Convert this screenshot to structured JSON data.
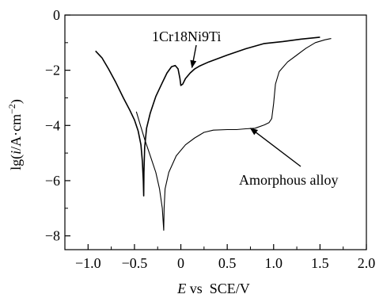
{
  "chart_data": {
    "type": "line",
    "xlim": [
      -1.25,
      2.0
    ],
    "ylim": [
      -8.5,
      0
    ],
    "x_ticks": [
      -1.0,
      -0.5,
      0,
      0.5,
      1.0,
      1.5,
      2.0
    ],
    "x_tick_labels": [
      "−1.0",
      "−0.5",
      "0",
      "0.5",
      "1.0",
      "1.5",
      "2.0"
    ],
    "y_ticks": [
      0,
      -2,
      -4,
      -6,
      -8
    ],
    "y_tick_labels": [
      "0",
      "−2",
      "−4",
      "−6",
      "−8"
    ],
    "xlabel": {
      "italic": "E",
      "rest": " vs  SCE/V"
    },
    "ylabel": {
      "pre": "lg(",
      "italic": "i",
      "post": "/A·cm",
      "sup": "−2",
      "end": ")"
    },
    "grid": false,
    "legend": "none",
    "series": [
      {
        "name": "1Cr18Ni9Ti",
        "color": "#000000",
        "points": [
          [
            -0.92,
            -1.3
          ],
          [
            -0.85,
            -1.55
          ],
          [
            -0.78,
            -1.95
          ],
          [
            -0.7,
            -2.45
          ],
          [
            -0.62,
            -3.0
          ],
          [
            -0.55,
            -3.45
          ],
          [
            -0.5,
            -3.8
          ],
          [
            -0.46,
            -4.2
          ],
          [
            -0.43,
            -4.7
          ],
          [
            -0.415,
            -5.3
          ],
          [
            -0.405,
            -6.0
          ],
          [
            -0.4,
            -6.55
          ],
          [
            -0.398,
            -5.7
          ],
          [
            -0.39,
            -4.8
          ],
          [
            -0.37,
            -4.1
          ],
          [
            -0.33,
            -3.55
          ],
          [
            -0.27,
            -2.95
          ],
          [
            -0.2,
            -2.45
          ],
          [
            -0.15,
            -2.1
          ],
          [
            -0.1,
            -1.87
          ],
          [
            -0.06,
            -1.83
          ],
          [
            -0.03,
            -1.95
          ],
          [
            -0.01,
            -2.3
          ],
          [
            0.0,
            -2.55
          ],
          [
            0.02,
            -2.5
          ],
          [
            0.05,
            -2.3
          ],
          [
            0.1,
            -2.1
          ],
          [
            0.15,
            -1.95
          ],
          [
            0.2,
            -1.85
          ],
          [
            0.3,
            -1.7
          ],
          [
            0.5,
            -1.45
          ],
          [
            0.7,
            -1.22
          ],
          [
            0.9,
            -1.03
          ],
          [
            1.1,
            -0.96
          ],
          [
            1.3,
            -0.87
          ],
          [
            1.5,
            -0.8
          ]
        ]
      },
      {
        "name": "Amorphous alloy",
        "color": "#000000",
        "points": [
          [
            -0.48,
            -3.5
          ],
          [
            -0.44,
            -3.95
          ],
          [
            -0.39,
            -4.5
          ],
          [
            -0.33,
            -5.1
          ],
          [
            -0.27,
            -5.7
          ],
          [
            -0.23,
            -6.3
          ],
          [
            -0.2,
            -7.0
          ],
          [
            -0.185,
            -7.8
          ],
          [
            -0.18,
            -7.0
          ],
          [
            -0.17,
            -6.3
          ],
          [
            -0.13,
            -5.7
          ],
          [
            -0.05,
            -5.1
          ],
          [
            0.05,
            -4.7
          ],
          [
            0.15,
            -4.45
          ],
          [
            0.25,
            -4.25
          ],
          [
            0.35,
            -4.17
          ],
          [
            0.5,
            -4.15
          ],
          [
            0.6,
            -4.15
          ],
          [
            0.7,
            -4.12
          ],
          [
            0.8,
            -4.1
          ],
          [
            0.9,
            -3.98
          ],
          [
            0.95,
            -3.9
          ],
          [
            0.98,
            -3.75
          ],
          [
            1.0,
            -3.2
          ],
          [
            1.02,
            -2.5
          ],
          [
            1.06,
            -2.05
          ],
          [
            1.15,
            -1.7
          ],
          [
            1.25,
            -1.45
          ],
          [
            1.35,
            -1.2
          ],
          [
            1.45,
            -1.0
          ],
          [
            1.55,
            -0.9
          ],
          [
            1.62,
            -0.85
          ]
        ]
      }
    ],
    "annotations": [
      {
        "text": "1Cr18Ni9Ti",
        "target": [
          0.12,
          -1.9
        ]
      },
      {
        "text": "Amorphous alloy",
        "target": [
          0.75,
          -4.1
        ]
      }
    ]
  }
}
